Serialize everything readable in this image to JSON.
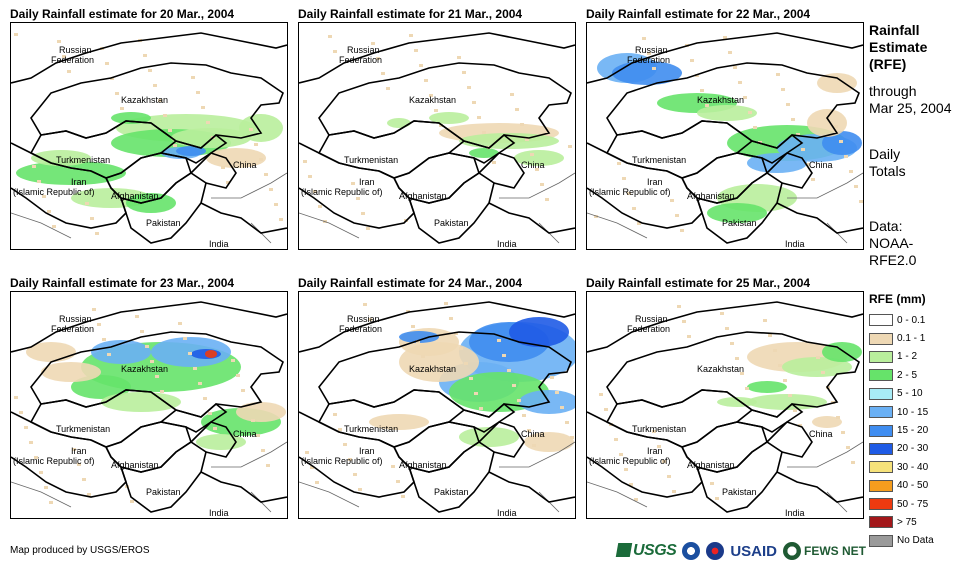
{
  "panels": [
    {
      "title": "Daily Rainfall estimate for 20 Mar., 2004",
      "coverage": "central"
    },
    {
      "title": "Daily Rainfall estimate for 21 Mar., 2004",
      "coverage": "light"
    },
    {
      "title": "Daily Rainfall estimate for 22 Mar., 2004",
      "coverage": "heavy-east"
    },
    {
      "title": "Daily Rainfall estimate for 23 Mar., 2004",
      "coverage": "heavy-kazakh"
    },
    {
      "title": "Daily Rainfall estimate for 24 Mar., 2004",
      "coverage": "heavy-north"
    },
    {
      "title": "Daily Rainfall estimate for 25 Mar., 2004",
      "coverage": "light-east"
    }
  ],
  "map_labels": {
    "russia": "Russian",
    "russia2": "Federation",
    "kazakhstan": "Kazakhstan",
    "turkmenistan": "Turkmenistan",
    "iran": "Iran",
    "iran2": "(Islamic Republic of)",
    "afghanistan": "Afghanistan",
    "pakistan": "Pakistan",
    "china": "China",
    "india": "India"
  },
  "sidebar": {
    "title1": "Rainfall",
    "title2": "Estimate",
    "title3": "(RFE)",
    "through": "through",
    "date": "Mar 25, 2004",
    "daily": "Daily",
    "totals": "Totals",
    "data": "Data:",
    "source1": "NOAA-",
    "source2": "RFE2.0"
  },
  "legend": {
    "title": "RFE (mm)",
    "items": [
      {
        "label": "0 - 0.1",
        "color": "#ffffff"
      },
      {
        "label": "0.1 - 1",
        "color": "#eed8b4"
      },
      {
        "label": "1 - 2",
        "color": "#b9ee9c"
      },
      {
        "label": "2 - 5",
        "color": "#66e36a"
      },
      {
        "label": "5 - 10",
        "color": "#a8ecf6"
      },
      {
        "label": "10 - 15",
        "color": "#6ab0f4"
      },
      {
        "label": "15 - 20",
        "color": "#3f8df0"
      },
      {
        "label": "20 - 30",
        "color": "#1f5be5"
      },
      {
        "label": "30 - 40",
        "color": "#f6e27a"
      },
      {
        "label": "40 - 50",
        "color": "#f59d1e"
      },
      {
        "label": "50 - 75",
        "color": "#ee3a10"
      },
      {
        "label": "> 75",
        "color": "#a3171a"
      },
      {
        "label": "No Data",
        "color": "#9a9a9a"
      }
    ]
  },
  "credit": "Map produced by USGS/EROS",
  "logos": {
    "usgs": "USGS",
    "usaid": "USAID",
    "fews": "FEWS NET"
  }
}
